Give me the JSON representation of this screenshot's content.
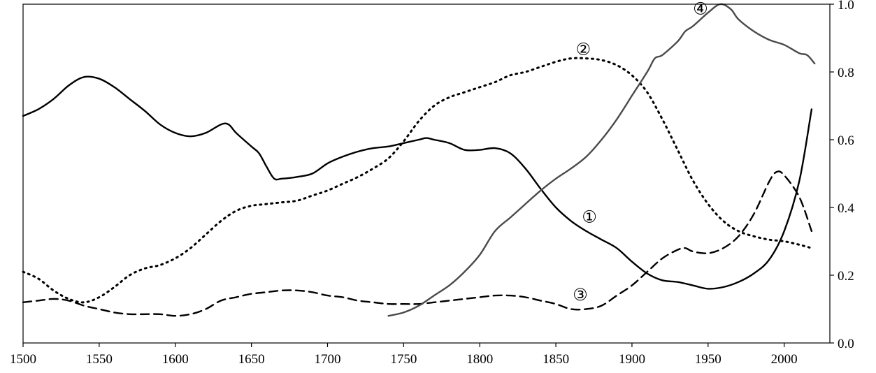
{
  "chart_data": {
    "type": "line",
    "title": "",
    "xlabel": "",
    "ylabel": "",
    "xlim": [
      1500,
      2030
    ],
    "ylim": [
      0.0,
      1.0
    ],
    "y_axis_side": "right",
    "grid": false,
    "legend": "none",
    "x_ticks": [
      "1500",
      "1550",
      "1600",
      "1650",
      "1700",
      "1750",
      "1800",
      "1850",
      "1900",
      "1950",
      "2000"
    ],
    "y_ticks": [
      "0.0",
      "0.2",
      "0.4",
      "0.6",
      "0.8",
      "1.0"
    ],
    "series": [
      {
        "label": "①",
        "label_at": [
          1872,
          0.37
        ],
        "style": "solid",
        "color": "#000000",
        "points": [
          [
            1500,
            0.67
          ],
          [
            1510,
            0.69
          ],
          [
            1520,
            0.72
          ],
          [
            1530,
            0.76
          ],
          [
            1540,
            0.785
          ],
          [
            1550,
            0.78
          ],
          [
            1560,
            0.755
          ],
          [
            1570,
            0.72
          ],
          [
            1580,
            0.685
          ],
          [
            1590,
            0.645
          ],
          [
            1600,
            0.62
          ],
          [
            1610,
            0.61
          ],
          [
            1620,
            0.62
          ],
          [
            1630,
            0.645
          ],
          [
            1635,
            0.645
          ],
          [
            1640,
            0.62
          ],
          [
            1650,
            0.58
          ],
          [
            1655,
            0.56
          ],
          [
            1660,
            0.52
          ],
          [
            1665,
            0.485
          ],
          [
            1670,
            0.485
          ],
          [
            1680,
            0.49
          ],
          [
            1690,
            0.5
          ],
          [
            1700,
            0.53
          ],
          [
            1710,
            0.55
          ],
          [
            1720,
            0.565
          ],
          [
            1730,
            0.575
          ],
          [
            1740,
            0.58
          ],
          [
            1750,
            0.59
          ],
          [
            1760,
            0.6
          ],
          [
            1765,
            0.605
          ],
          [
            1770,
            0.6
          ],
          [
            1780,
            0.59
          ],
          [
            1790,
            0.57
          ],
          [
            1800,
            0.57
          ],
          [
            1810,
            0.575
          ],
          [
            1820,
            0.56
          ],
          [
            1830,
            0.515
          ],
          [
            1840,
            0.455
          ],
          [
            1850,
            0.4
          ],
          [
            1860,
            0.36
          ],
          [
            1870,
            0.33
          ],
          [
            1880,
            0.305
          ],
          [
            1890,
            0.28
          ],
          [
            1900,
            0.24
          ],
          [
            1910,
            0.205
          ],
          [
            1920,
            0.185
          ],
          [
            1930,
            0.18
          ],
          [
            1940,
            0.17
          ],
          [
            1950,
            0.16
          ],
          [
            1960,
            0.165
          ],
          [
            1970,
            0.18
          ],
          [
            1980,
            0.205
          ],
          [
            1990,
            0.245
          ],
          [
            2000,
            0.33
          ],
          [
            2010,
            0.48
          ],
          [
            2018,
            0.69
          ]
        ]
      },
      {
        "label": "②",
        "label_at": [
          1868,
          0.865
        ],
        "style": "dotted",
        "color": "#000000",
        "points": [
          [
            1500,
            0.21
          ],
          [
            1510,
            0.19
          ],
          [
            1520,
            0.155
          ],
          [
            1530,
            0.13
          ],
          [
            1540,
            0.12
          ],
          [
            1550,
            0.135
          ],
          [
            1560,
            0.165
          ],
          [
            1570,
            0.2
          ],
          [
            1580,
            0.22
          ],
          [
            1590,
            0.23
          ],
          [
            1600,
            0.25
          ],
          [
            1610,
            0.28
          ],
          [
            1620,
            0.32
          ],
          [
            1630,
            0.36
          ],
          [
            1640,
            0.39
          ],
          [
            1650,
            0.405
          ],
          [
            1660,
            0.41
          ],
          [
            1670,
            0.415
          ],
          [
            1680,
            0.42
          ],
          [
            1690,
            0.435
          ],
          [
            1700,
            0.45
          ],
          [
            1710,
            0.47
          ],
          [
            1720,
            0.49
          ],
          [
            1730,
            0.515
          ],
          [
            1740,
            0.545
          ],
          [
            1750,
            0.595
          ],
          [
            1760,
            0.655
          ],
          [
            1770,
            0.7
          ],
          [
            1780,
            0.725
          ],
          [
            1790,
            0.74
          ],
          [
            1800,
            0.755
          ],
          [
            1810,
            0.77
          ],
          [
            1820,
            0.79
          ],
          [
            1830,
            0.8
          ],
          [
            1840,
            0.815
          ],
          [
            1850,
            0.83
          ],
          [
            1860,
            0.84
          ],
          [
            1870,
            0.84
          ],
          [
            1880,
            0.835
          ],
          [
            1890,
            0.82
          ],
          [
            1900,
            0.79
          ],
          [
            1910,
            0.74
          ],
          [
            1920,
            0.66
          ],
          [
            1930,
            0.57
          ],
          [
            1940,
            0.48
          ],
          [
            1950,
            0.41
          ],
          [
            1960,
            0.36
          ],
          [
            1970,
            0.33
          ],
          [
            1980,
            0.315
          ],
          [
            1990,
            0.305
          ],
          [
            2000,
            0.3
          ],
          [
            2010,
            0.29
          ],
          [
            2018,
            0.28
          ]
        ]
      },
      {
        "label": "③",
        "label_at": [
          1866,
          0.14
        ],
        "style": "dashed",
        "color": "#000000",
        "points": [
          [
            1500,
            0.12
          ],
          [
            1510,
            0.125
          ],
          [
            1520,
            0.13
          ],
          [
            1530,
            0.125
          ],
          [
            1540,
            0.11
          ],
          [
            1550,
            0.1
          ],
          [
            1560,
            0.09
          ],
          [
            1570,
            0.085
          ],
          [
            1580,
            0.085
          ],
          [
            1590,
            0.085
          ],
          [
            1600,
            0.08
          ],
          [
            1610,
            0.085
          ],
          [
            1620,
            0.1
          ],
          [
            1630,
            0.125
          ],
          [
            1640,
            0.135
          ],
          [
            1650,
            0.145
          ],
          [
            1660,
            0.15
          ],
          [
            1670,
            0.155
          ],
          [
            1680,
            0.155
          ],
          [
            1690,
            0.15
          ],
          [
            1700,
            0.14
          ],
          [
            1710,
            0.135
          ],
          [
            1720,
            0.125
          ],
          [
            1730,
            0.12
          ],
          [
            1740,
            0.115
          ],
          [
            1750,
            0.115
          ],
          [
            1760,
            0.115
          ],
          [
            1770,
            0.12
          ],
          [
            1780,
            0.125
          ],
          [
            1790,
            0.13
          ],
          [
            1800,
            0.135
          ],
          [
            1810,
            0.14
          ],
          [
            1820,
            0.14
          ],
          [
            1830,
            0.135
          ],
          [
            1840,
            0.125
          ],
          [
            1850,
            0.115
          ],
          [
            1860,
            0.1
          ],
          [
            1870,
            0.1
          ],
          [
            1880,
            0.11
          ],
          [
            1890,
            0.14
          ],
          [
            1900,
            0.17
          ],
          [
            1910,
            0.21
          ],
          [
            1920,
            0.25
          ],
          [
            1930,
            0.275
          ],
          [
            1935,
            0.28
          ],
          [
            1940,
            0.27
          ],
          [
            1950,
            0.265
          ],
          [
            1960,
            0.28
          ],
          [
            1970,
            0.315
          ],
          [
            1980,
            0.38
          ],
          [
            1990,
            0.475
          ],
          [
            1995,
            0.505
          ],
          [
            2000,
            0.495
          ],
          [
            2010,
            0.43
          ],
          [
            2018,
            0.33
          ]
        ]
      },
      {
        "label": "④",
        "label_at": [
          1945,
          0.985
        ],
        "style": "solid",
        "color": "#4a4a4a",
        "points": [
          [
            1740,
            0.08
          ],
          [
            1750,
            0.09
          ],
          [
            1760,
            0.11
          ],
          [
            1770,
            0.14
          ],
          [
            1780,
            0.17
          ],
          [
            1790,
            0.21
          ],
          [
            1800,
            0.26
          ],
          [
            1810,
            0.33
          ],
          [
            1820,
            0.37
          ],
          [
            1830,
            0.41
          ],
          [
            1840,
            0.45
          ],
          [
            1850,
            0.485
          ],
          [
            1860,
            0.515
          ],
          [
            1870,
            0.55
          ],
          [
            1880,
            0.6
          ],
          [
            1890,
            0.66
          ],
          [
            1900,
            0.73
          ],
          [
            1910,
            0.8
          ],
          [
            1915,
            0.84
          ],
          [
            1920,
            0.85
          ],
          [
            1930,
            0.89
          ],
          [
            1935,
            0.92
          ],
          [
            1940,
            0.935
          ],
          [
            1950,
            0.975
          ],
          [
            1958,
            1.0
          ],
          [
            1965,
            0.985
          ],
          [
            1970,
            0.955
          ],
          [
            1980,
            0.92
          ],
          [
            1990,
            0.895
          ],
          [
            2000,
            0.88
          ],
          [
            2010,
            0.855
          ],
          [
            2015,
            0.85
          ],
          [
            2020,
            0.825
          ]
        ]
      }
    ]
  }
}
